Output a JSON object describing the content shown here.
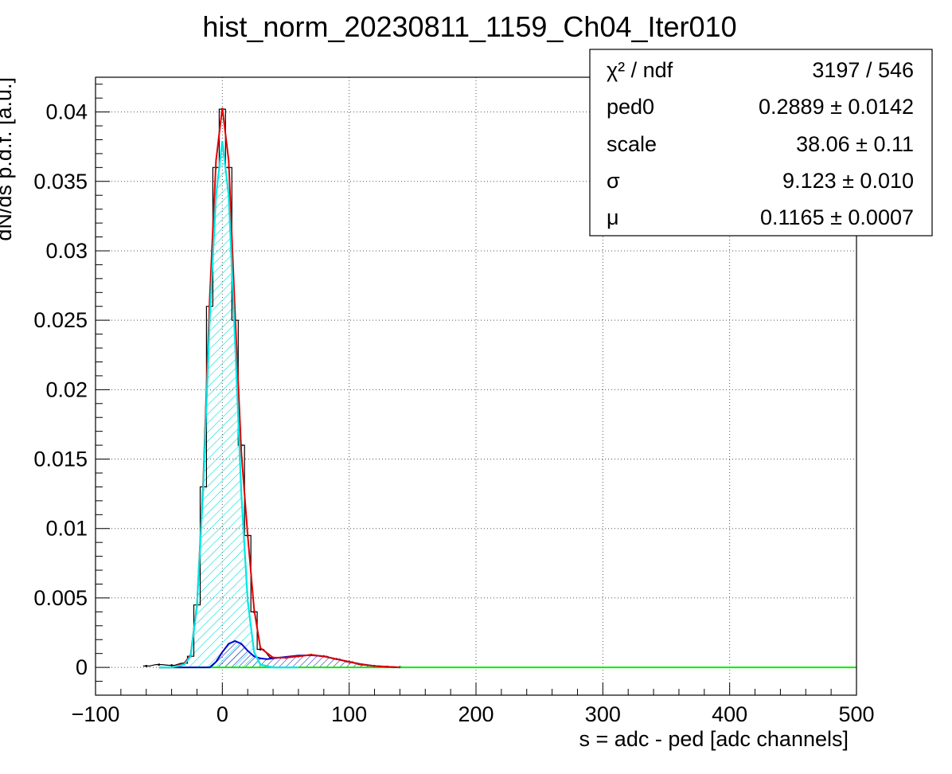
{
  "chart_data": {
    "type": "histogram",
    "title": "hist_norm_20230811_1159_Ch04_Iter010",
    "xlabel": "s = adc - ped [adc channels]",
    "ylabel": "dN/ds p.d.f. [a.u.]",
    "xlim": [
      -100,
      500
    ],
    "ylim": [
      -0.002,
      0.0425
    ],
    "grid": true,
    "x_ticks": [
      -100,
      0,
      100,
      200,
      300,
      400,
      500
    ],
    "x_tick_labels": [
      "−100",
      "0",
      "100",
      "200",
      "300",
      "400",
      "500"
    ],
    "y_ticks": [
      0,
      0.005,
      0.01,
      0.015,
      0.02,
      0.025,
      0.03,
      0.035,
      0.04
    ],
    "y_tick_labels": [
      "0",
      "0.005",
      "0.01",
      "0.015",
      "0.02",
      "0.025",
      "0.03",
      "0.035",
      "0.04"
    ],
    "stats_box": {
      "position": "top-right",
      "rows": [
        {
          "label": "χ² / ndf",
          "value": "3197 / 546"
        },
        {
          "label": "ped0",
          "value": "0.2889 ± 0.0142"
        },
        {
          "label": "scale",
          "value": "38.06 ± 0.11"
        },
        {
          "label": "σ",
          "value": "9.123 ± 0.010"
        },
        {
          "label": "μ",
          "value": "0.1165 ± 0.0007"
        }
      ]
    },
    "series": [
      {
        "role": "data-histogram",
        "color": "#000000",
        "x": [
          -60,
          -50,
          -40,
          -30,
          -25,
          -20,
          -15,
          -10,
          -5,
          0,
          5,
          10,
          15,
          20,
          25,
          30,
          40,
          50,
          60,
          70,
          80,
          90,
          100,
          110,
          120,
          130,
          140
        ],
        "y": [
          0.0001,
          0.0002,
          0.00015,
          0.0003,
          0.0008,
          0.0045,
          0.013,
          0.026,
          0.036,
          0.0402,
          0.036,
          0.025,
          0.016,
          0.0095,
          0.004,
          0.0013,
          0.0007,
          0.0007,
          0.0008,
          0.0009,
          0.0008,
          0.0006,
          0.0004,
          0.0002,
          0.0001,
          5e-05,
          2e-05
        ]
      },
      {
        "role": "total-fit",
        "color": "#e00000",
        "x": [
          -50,
          -40,
          -30,
          -25,
          -20,
          -15,
          -10,
          -5,
          0,
          5,
          10,
          15,
          20,
          25,
          30,
          40,
          50,
          60,
          70,
          80,
          90,
          100,
          110,
          120,
          130,
          140
        ],
        "y": [
          0.0,
          0.0,
          0.0003,
          0.0009,
          0.0045,
          0.0135,
          0.0265,
          0.0365,
          0.0403,
          0.0365,
          0.0255,
          0.0155,
          0.0095,
          0.0042,
          0.0014,
          0.0007,
          0.0007,
          0.0008,
          0.0009,
          0.0008,
          0.0006,
          0.0004,
          0.0002,
          0.0001,
          5e-05,
          0.0
        ]
      },
      {
        "role": "pedestal-component",
        "color": "#00e5e5",
        "fill": "hatched",
        "x": [
          -50,
          -40,
          -30,
          -25,
          -20,
          -15,
          -10,
          -5,
          0,
          5,
          10,
          15,
          20,
          25,
          30,
          40,
          50,
          60
        ],
        "y": [
          0.0,
          0.0,
          0.0002,
          0.0008,
          0.0044,
          0.013,
          0.025,
          0.034,
          0.0379,
          0.034,
          0.0235,
          0.0125,
          0.0048,
          0.0011,
          0.0002,
          0.0,
          0.0,
          0.0
        ]
      },
      {
        "role": "signal-component",
        "color": "#0000d0",
        "fill": "hatched",
        "x": [
          -50,
          -10,
          -5,
          0,
          5,
          10,
          15,
          20,
          25,
          30,
          35,
          40,
          50,
          60,
          70,
          80,
          90,
          100,
          110,
          120,
          130,
          140
        ],
        "y": [
          0.0,
          0.0,
          0.0004,
          0.0011,
          0.0017,
          0.0019,
          0.0017,
          0.0012,
          0.0008,
          0.00065,
          0.0006,
          0.00065,
          0.00075,
          0.00085,
          0.00088,
          0.0008,
          0.0006,
          0.0004,
          0.00022,
          0.0001,
          4e-05,
          0.0
        ]
      },
      {
        "role": "baseline",
        "color": "#00ee00",
        "x": [
          -50,
          500
        ],
        "y": [
          0.0,
          0.0
        ]
      }
    ]
  }
}
